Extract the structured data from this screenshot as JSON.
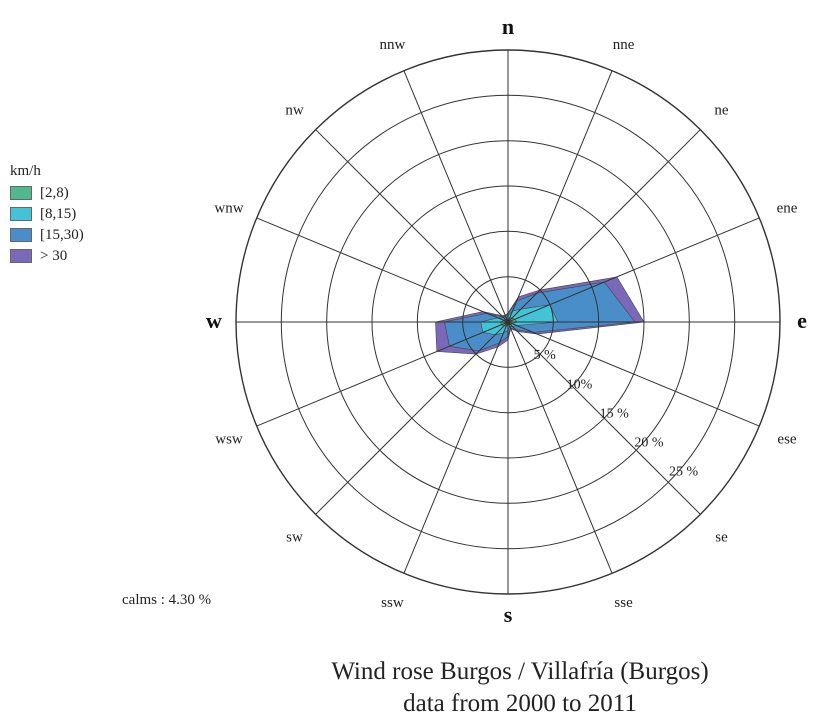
{
  "chart_data": {
    "type": "radar",
    "title": "Wind rose Burgos / Villafría (Burgos)",
    "subtitle": "data from 2000 to 2011",
    "directions": [
      "n",
      "nne",
      "ne",
      "ene",
      "e",
      "ese",
      "se",
      "sse",
      "s",
      "ssw",
      "sw",
      "wsw",
      "w",
      "wnw",
      "nw",
      "nnw"
    ],
    "radial_max": 30,
    "ring_labels": [
      "5 %",
      "10%",
      "15 %",
      "20 %",
      "25 %"
    ],
    "legend_title": "km/h",
    "calms": "calms : 4.30 %",
    "series": [
      {
        "name": "> 30",
        "color": "#7b68b8",
        "values": [
          1.0,
          3.0,
          5.0,
          13.0,
          15.0,
          3.5,
          1.5,
          0.8,
          2.0,
          3.0,
          5.0,
          8.5,
          8.0,
          3.0,
          1.0,
          0.8
        ]
      },
      {
        "name": "[15,30)",
        "color": "#4a8ec9",
        "values": [
          0.9,
          2.5,
          4.5,
          11.5,
          14.0,
          3.0,
          1.2,
          0.7,
          1.6,
          2.5,
          4.5,
          7.0,
          7.0,
          2.5,
          0.8,
          0.7
        ]
      },
      {
        "name": "[8,15)",
        "color": "#42c3d6",
        "values": [
          0.7,
          1.3,
          2.0,
          5.0,
          5.5,
          1.0,
          0.7,
          0.5,
          0.9,
          1.3,
          2.0,
          3.0,
          3.0,
          1.2,
          0.6,
          0.5
        ]
      },
      {
        "name": "[2,8)",
        "color": "#4fb88f",
        "values": [
          0.4,
          0.5,
          0.6,
          0.8,
          1.0,
          0.5,
          0.4,
          0.3,
          0.4,
          0.5,
          0.6,
          0.8,
          0.8,
          0.5,
          0.4,
          0.3
        ]
      }
    ],
    "legend": [
      {
        "label": "[2,8)",
        "color": "#4fb88f"
      },
      {
        "label": "[8,15)",
        "color": "#42c3d6"
      },
      {
        "label": "[15,30)",
        "color": "#4a8ec9"
      },
      {
        "label": "> 30",
        "color": "#7b68b8"
      }
    ]
  }
}
